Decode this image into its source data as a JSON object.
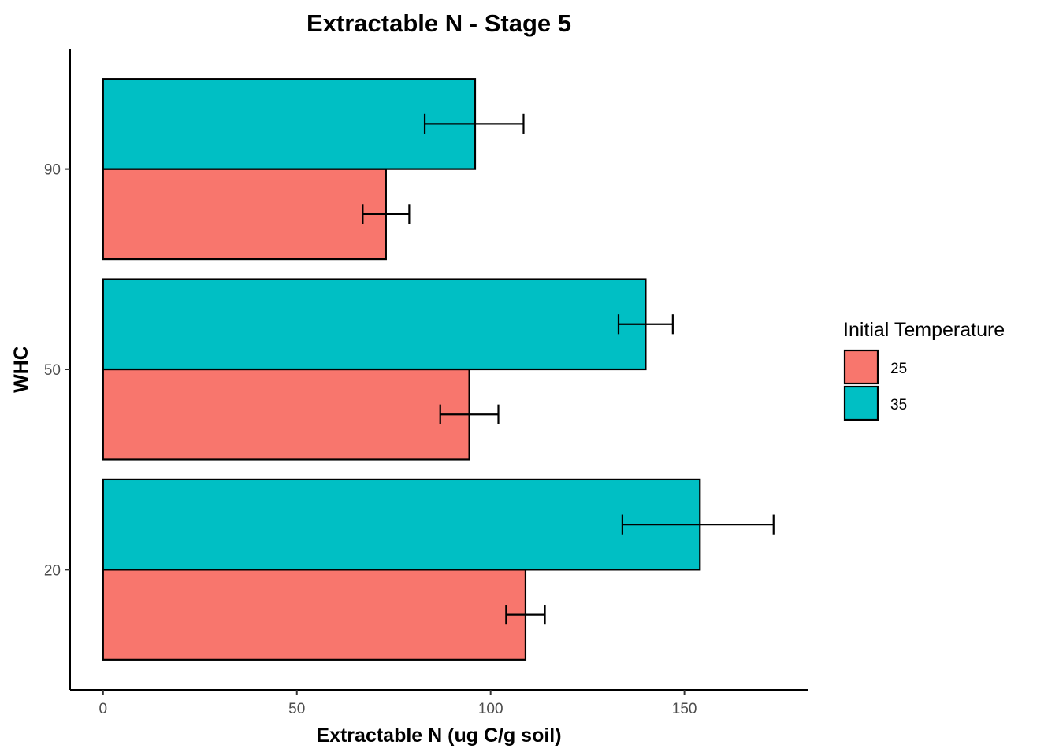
{
  "chart_data": {
    "type": "bar",
    "orientation": "horizontal",
    "title": "Extractable N - Stage 5",
    "xlabel": "Extractable N (ug C/g soil)",
    "ylabel": "WHC",
    "categories": [
      "20",
      "50",
      "90"
    ],
    "xlim": [
      -8.5,
      182
    ],
    "x_ticks": [
      0,
      50,
      100,
      150
    ],
    "x_tick_labels": [
      "0",
      "50",
      "100",
      "150"
    ],
    "legend": {
      "title": "Initial Temperature",
      "position": "right"
    },
    "series": [
      {
        "name": "25",
        "color": "#F8766D",
        "values": [
          109,
          94.5,
          73
        ],
        "error_low": [
          104,
          87,
          67
        ],
        "error_high": [
          114,
          102,
          79
        ]
      },
      {
        "name": "35",
        "color": "#00BFC4",
        "values": [
          154,
          140,
          96
        ],
        "error_low": [
          134,
          133,
          83
        ],
        "error_high": [
          173,
          147,
          108.5
        ]
      }
    ],
    "grid": false
  }
}
